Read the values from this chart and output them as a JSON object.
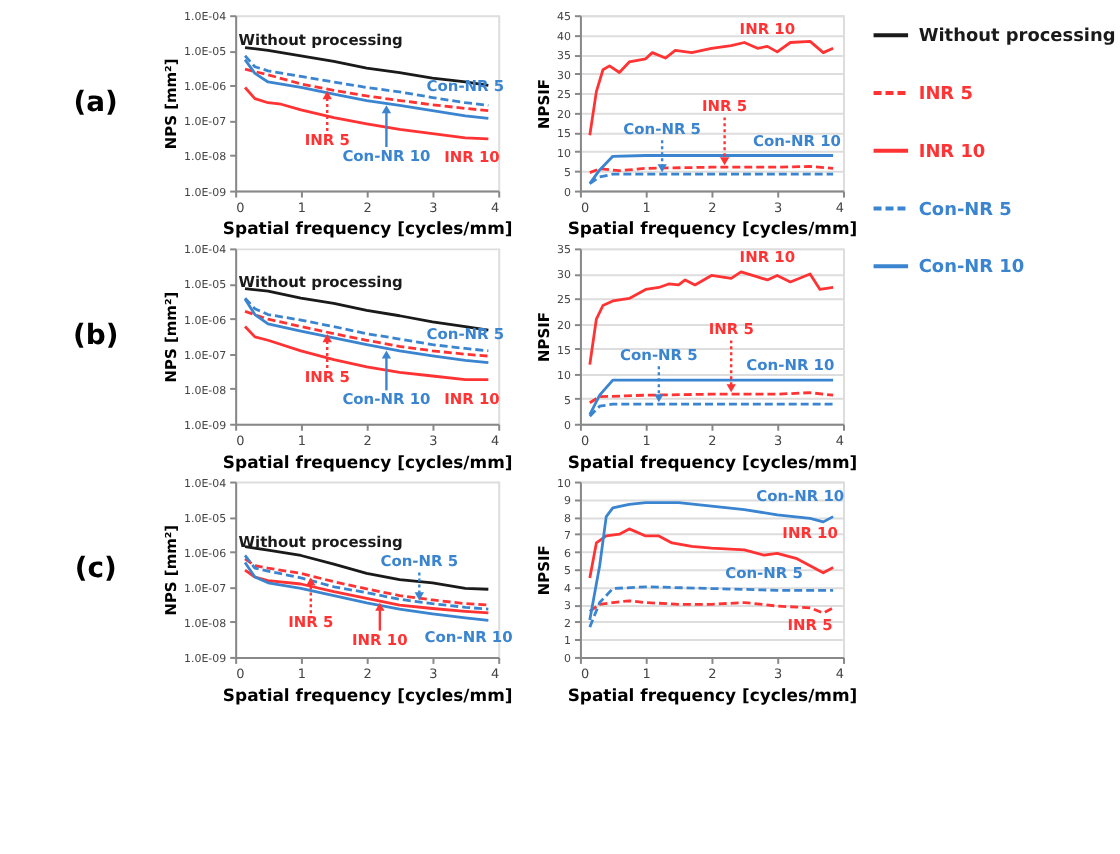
{
  "chart_data": [
    {
      "type": "line",
      "xlabel": "Spatial frequency [cycles/mm]",
      "ylabel": "NPS [mm²]",
      "log": "y",
      "legend": "right",
      "xlim": [
        0,
        4
      ],
      "xticks": [
        0,
        1,
        2,
        3,
        4
      ],
      "ylim": [
        1e-09,
        0.0001
      ],
      "yticks": [
        {
          "value": 1e-09,
          "label": "1.0E-09"
        },
        {
          "value": 1e-08,
          "label": "1.0E-08"
        },
        {
          "value": 1e-07,
          "label": "1.0E-07"
        },
        {
          "value": 1e-06,
          "label": "1.0E-06"
        },
        {
          "value": 1e-05,
          "label": "1.0E-05"
        },
        {
          "value": 0.0001,
          "label": "1.0E-04"
        }
      ],
      "series": [
        {
          "name": "Without processing",
          "color": "#1a1a1a",
          "line_style": "solid",
          "x": [
            0.15,
            0.5,
            1.0,
            1.5,
            2.0,
            2.5,
            3.0,
            3.5,
            3.85
          ],
          "values": [
            1.2e-05,
            1e-05,
            6.9e-06,
            4.8e-06,
            3.1e-06,
            2.3e-06,
            1.6e-06,
            1.25e-06,
            1e-06
          ]
        },
        {
          "name": "INR 5",
          "color": "#ff3333",
          "line_style": "dashed",
          "x": [
            0.15,
            0.5,
            1.0,
            1.5,
            2.0,
            2.5,
            3.0,
            3.5,
            3.85
          ],
          "values": [
            2.9e-06,
            2e-06,
            1.1e-06,
            7.2e-07,
            5e-07,
            3.7e-07,
            2.8e-07,
            2.2e-07,
            1.9e-07
          ]
        },
        {
          "name": "INR 10",
          "color": "#ff3333",
          "line_style": "solid",
          "x": [
            0.15,
            0.3,
            0.5,
            0.7,
            1.0,
            1.5,
            2.0,
            2.5,
            3.0,
            3.5,
            3.85
          ],
          "values": [
            8.7e-07,
            4.2e-07,
            3.2e-07,
            2.9e-07,
            2e-07,
            1.2e-07,
            8e-08,
            5.6e-08,
            4.2e-08,
            3.2e-08,
            3e-08
          ]
        },
        {
          "name": "Con-NR 5",
          "color": "#3a84d0",
          "line_style": "dashed",
          "x": [
            0.15,
            0.3,
            0.5,
            1.0,
            1.5,
            2.0,
            2.5,
            3.0,
            3.5,
            3.85
          ],
          "values": [
            7e-06,
            3.4e-06,
            2.6e-06,
            1.8e-06,
            1.25e-06,
            8.7e-07,
            6.5e-07,
            4.5e-07,
            3.2e-07,
            2.7e-07
          ]
        },
        {
          "name": "Con-NR 10",
          "color": "#3a84d0",
          "line_style": "solid",
          "x": [
            0.15,
            0.3,
            0.5,
            1.0,
            1.5,
            2.0,
            2.5,
            3.0,
            3.5,
            3.85
          ],
          "values": [
            5.4e-06,
            2.2e-06,
            1.25e-06,
            8.7e-07,
            5.6e-07,
            3.7e-07,
            2.7e-07,
            1.9e-07,
            1.35e-07,
            1.15e-07
          ]
        }
      ],
      "annotations": [
        "(a)",
        {
          "text": "Without processing",
          "x": 1.3,
          "y": 5.6e-06
        },
        {
          "text": "Con-NR 5",
          "x": 3.5,
          "y": 3.2e-07
        },
        {
          "text": "INR 5",
          "x": 1.4,
          "y": 7.8e-07
        },
        {
          "text": "Con-NR 10",
          "x": 2.3,
          "y": 3.1e-07
        },
        {
          "text": "INR 10",
          "x": 3.6,
          "y": 3.1e-08
        }
      ]
    },
    {
      "type": "line",
      "xlabel": "Spatial frequency [cycles/mm]",
      "ylabel": "NPSIF",
      "grid": "y",
      "xlim": [
        0,
        4
      ],
      "xticks": [
        0,
        1,
        2,
        3,
        4
      ],
      "ylim": [
        0,
        45
      ],
      "yticks": [
        0,
        5,
        10,
        15,
        20,
        25,
        30,
        35,
        40,
        45
      ],
      "series": [
        {
          "color": "#ff3333",
          "line_style": "dashed",
          "x": [
            0.15,
            0.3,
            0.6,
            1.0,
            2.0,
            3.0,
            3.5,
            3.85
          ],
          "values": [
            4.6,
            5.6,
            5.1,
            5.7,
            6.0,
            6.0,
            6.2,
            5.7
          ]
        },
        {
          "color": "#ff3333",
          "line_style": "solid",
          "x": [
            0.15,
            0.25,
            0.35,
            0.45,
            0.6,
            0.75,
            1.0,
            1.1,
            1.3,
            1.45,
            1.7,
            2.0,
            2.3,
            2.5,
            2.7,
            2.85,
            3.0,
            3.2,
            3.5,
            3.7,
            3.85
          ],
          "values": [
            14.2,
            25.4,
            31,
            32,
            30.3,
            33,
            33.8,
            35.4,
            34,
            36,
            35.4,
            36.5,
            37.2,
            38,
            36.5,
            37,
            35.6,
            38,
            38.3,
            35.4,
            36.5
          ]
        },
        {
          "color": "#3a84d0",
          "line_style": "dashed",
          "x": [
            0.15,
            0.3,
            0.5,
            1.0,
            3.85
          ],
          "values": [
            1.8,
            3.5,
            4.2,
            4.2,
            4.2
          ]
        },
        {
          "color": "#3a84d0",
          "line_style": "solid",
          "x": [
            0.15,
            0.3,
            0.5,
            1.0,
            3.85
          ],
          "values": [
            1.8,
            5.3,
            8.8,
            9.0,
            9.0
          ]
        }
      ],
      "annotations": [
        {
          "text": "INR 10",
          "x": 2.85,
          "y": 37
        },
        {
          "text": "INR 5",
          "x": 2.2,
          "y": 6.0
        },
        {
          "text": "Con-NR 5",
          "x": 1.25,
          "y": 4.2
        },
        {
          "text": "Con-NR 10",
          "x": 3.3,
          "y": 9.0
        }
      ]
    },
    {
      "type": "line",
      "xlabel": "Spatial frequency [cycles/mm]",
      "ylabel": "NPS [mm²]",
      "log": "y",
      "xlim": [
        0,
        4
      ],
      "xticks": [
        0,
        1,
        2,
        3,
        4
      ],
      "ylim": [
        1e-09,
        0.0001
      ],
      "yticks": [
        {
          "value": 1e-09,
          "label": "1.0E-09"
        },
        {
          "value": 1e-08,
          "label": "1.0E-08"
        },
        {
          "value": 1e-07,
          "label": "1.0E-07"
        },
        {
          "value": 1e-06,
          "label": "1.0E-06"
        },
        {
          "value": 1e-05,
          "label": "1.0E-05"
        },
        {
          "value": 0.0001,
          "label": "1.0E-04"
        }
      ],
      "series": [
        {
          "color": "#1a1a1a",
          "line_style": "solid",
          "x": [
            0.15,
            0.5,
            1.0,
            1.5,
            2.0,
            2.5,
            3.0,
            3.5,
            3.85
          ],
          "values": [
            7.1e-06,
            6e-06,
            3.8e-06,
            2.7e-06,
            1.7e-06,
            1.2e-06,
            8e-07,
            5.9e-07,
            4.7e-07
          ]
        },
        {
          "color": "#ff3333",
          "line_style": "dashed",
          "x": [
            0.15,
            0.5,
            1.0,
            1.5,
            2.0,
            2.5,
            3.0,
            3.5,
            3.85
          ],
          "values": [
            1.6e-06,
            9.6e-07,
            5.9e-07,
            3.7e-07,
            2.4e-07,
            1.6e-07,
            1.2e-07,
            9.6e-08,
            8.5e-08
          ]
        },
        {
          "color": "#ff3333",
          "line_style": "solid",
          "x": [
            0.15,
            0.3,
            0.5,
            1.0,
            1.5,
            2.0,
            2.5,
            3.0,
            3.5,
            3.85
          ],
          "values": [
            5.9e-07,
            3e-07,
            2.4e-07,
            1.2e-07,
            6.7e-08,
            4.2e-08,
            2.9e-08,
            2.3e-08,
            1.8e-08,
            1.8e-08
          ]
        },
        {
          "color": "#3a84d0",
          "line_style": "dashed",
          "x": [
            0.15,
            0.3,
            0.5,
            1.0,
            1.5,
            2.0,
            2.5,
            3.0,
            3.5,
            3.85
          ],
          "values": [
            3.8e-06,
            1.9e-06,
            1.3e-06,
            9e-07,
            5.9e-07,
            3.7e-07,
            2.6e-07,
            1.8e-07,
            1.4e-07,
            1.2e-07
          ]
        },
        {
          "color": "#3a84d0",
          "line_style": "solid",
          "x": [
            0.15,
            0.3,
            0.5,
            1.0,
            1.5,
            2.0,
            2.5,
            3.0,
            3.5,
            3.85
          ],
          "values": [
            3.6e-06,
            1.3e-06,
            7e-07,
            4.4e-07,
            2.8e-07,
            1.8e-07,
            1.2e-07,
            8.6e-08,
            6.4e-08,
            5.5e-08
          ]
        }
      ],
      "annotations": [
        "(b)",
        {
          "text": "Without processing",
          "x": 1.3,
          "y": 3.1e-06
        },
        {
          "text": "Con-NR 5",
          "x": 3.5,
          "y": 1.4e-07
        },
        {
          "text": "INR 5",
          "x": 1.4,
          "y": 4.1e-07
        },
        {
          "text": "Con-NR 10",
          "x": 2.3,
          "y": 1.4e-07
        },
        {
          "text": "INR 10",
          "x": 3.6,
          "y": 1.8e-08
        }
      ]
    },
    {
      "type": "line",
      "xlabel": "Spatial frequency [cycles/mm]",
      "ylabel": "NPSIF",
      "grid": "y",
      "xlim": [
        0,
        4
      ],
      "xticks": [
        0,
        1,
        2,
        3,
        4
      ],
      "ylim": [
        0,
        35
      ],
      "yticks": [
        0,
        5,
        10,
        15,
        20,
        25,
        30,
        35
      ],
      "series": [
        {
          "color": "#ff3333",
          "line_style": "dashed",
          "x": [
            0.15,
            0.3,
            1.0,
            2.0,
            3.0,
            3.5,
            3.85
          ],
          "values": [
            4.2,
            5.4,
            5.7,
            5.9,
            5.9,
            6.2,
            5.7
          ]
        },
        {
          "color": "#ff3333",
          "line_style": "solid",
          "x": [
            0.15,
            0.25,
            0.35,
            0.5,
            0.75,
            1.0,
            1.2,
            1.35,
            1.5,
            1.6,
            1.75,
            2.0,
            2.3,
            2.45,
            2.7,
            2.85,
            3.0,
            3.2,
            3.5,
            3.65,
            3.85
          ],
          "values": [
            11.8,
            20.9,
            23.6,
            24.5,
            25,
            26.8,
            27.2,
            27.9,
            27.7,
            28.7,
            27.7,
            29.6,
            29,
            30.3,
            29.3,
            28.7,
            29.6,
            28.3,
            29.9,
            26.8,
            27.2
          ]
        },
        {
          "color": "#3a84d0",
          "line_style": "dashed",
          "x": [
            0.15,
            0.3,
            0.5,
            3.85
          ],
          "values": [
            1.5,
            3.5,
            3.9,
            3.9
          ]
        },
        {
          "color": "#3a84d0",
          "line_style": "solid",
          "x": [
            0.15,
            0.3,
            0.5,
            3.85
          ],
          "values": [
            1.8,
            5.7,
            8.7,
            8.7
          ]
        }
      ],
      "annotations": [
        {
          "text": "INR 10",
          "x": 2.85,
          "y": 28.7
        },
        {
          "text": "INR 5",
          "x": 2.3,
          "y": 5.9
        },
        {
          "text": "Con-NR 5",
          "x": 1.2,
          "y": 3.9
        },
        {
          "text": "Con-NR 10",
          "x": 3.2,
          "y": 8.7
        }
      ]
    },
    {
      "type": "line",
      "xlabel": "Spatial frequency [cycles/mm]",
      "ylabel": "NPS [mm²]",
      "log": "y",
      "xlim": [
        0,
        4
      ],
      "xticks": [
        0,
        1,
        2,
        3,
        4
      ],
      "ylim": [
        1e-09,
        0.0001
      ],
      "yticks": [
        {
          "value": 1e-09,
          "label": "1.0E-09"
        },
        {
          "value": 1e-08,
          "label": "1.0E-08"
        },
        {
          "value": 1e-07,
          "label": "1.0E-07"
        },
        {
          "value": 1e-06,
          "label": "1.0E-06"
        },
        {
          "value": 1e-05,
          "label": "1.0E-05"
        },
        {
          "value": 0.0001,
          "label": "1.0E-04"
        }
      ],
      "series": [
        {
          "color": "#1a1a1a",
          "line_style": "solid",
          "x": [
            0.15,
            0.5,
            1.0,
            1.5,
            2.0,
            2.5,
            3.0,
            3.5,
            3.85
          ],
          "values": [
            1.4e-06,
            1.1e-06,
            7.8e-07,
            4.4e-07,
            2.4e-07,
            1.6e-07,
            1.3e-07,
            9e-08,
            8.5e-08
          ]
        },
        {
          "color": "#ff3333",
          "line_style": "dashed",
          "x": [
            0.15,
            0.3,
            0.5,
            1.0,
            1.5,
            2.0,
            2.5,
            3.0,
            3.5,
            3.85
          ],
          "values": [
            6.3e-07,
            4e-07,
            3.4e-07,
            2.4e-07,
            1.4e-07,
            8.7e-08,
            5.6e-08,
            4.2e-08,
            3.3e-08,
            3e-08
          ]
        },
        {
          "color": "#ff3333",
          "line_style": "solid",
          "x": [
            0.15,
            0.3,
            0.5,
            1.0,
            1.5,
            2.0,
            2.5,
            3.0,
            3.5,
            3.85
          ],
          "values": [
            3e-07,
            1.9e-07,
            1.5e-07,
            1.2e-07,
            7.3e-08,
            4.7e-08,
            3e-08,
            2.4e-08,
            2e-08,
            1.8e-08
          ]
        },
        {
          "color": "#3a84d0",
          "line_style": "dashed",
          "x": [
            0.15,
            0.3,
            0.5,
            1.0,
            1.5,
            2.0,
            2.5,
            3.0,
            3.5,
            3.85
          ],
          "values": [
            7.8e-07,
            3.4e-07,
            2.8e-07,
            1.8e-07,
            1e-07,
            6.8e-08,
            4.4e-08,
            3.3e-08,
            2.6e-08,
            2.3e-08
          ]
        },
        {
          "color": "#3a84d0",
          "line_style": "solid",
          "x": [
            0.15,
            0.3,
            0.5,
            1.0,
            1.5,
            2.0,
            2.5,
            3.0,
            3.5,
            3.85
          ],
          "values": [
            4.9e-07,
            1.9e-07,
            1.3e-07,
            9e-08,
            5.6e-08,
            3.5e-08,
            2.3e-08,
            1.7e-08,
            1.3e-08,
            1.1e-08
          ]
        }
      ],
      "annotations": [
        "(c)",
        {
          "text": "Without processing",
          "x": 1.3,
          "y": 5.6e-07
        },
        {
          "text": "Con-NR 5",
          "x": 2.8,
          "y": 3.6e-08
        },
        {
          "text": "INR 5",
          "x": 1.15,
          "y": 2.1e-07
        },
        {
          "text": "INR 10",
          "x": 2.2,
          "y": 4e-08
        },
        {
          "text": "Con-NR 10",
          "x": 3.55,
          "y": 1.25e-08
        }
      ]
    },
    {
      "type": "line",
      "xlabel": "Spatial frequency [cycles/mm]",
      "ylabel": "NPSIF",
      "grid": "y",
      "xlim": [
        0,
        4
      ],
      "xticks": [
        0,
        1,
        2,
        3,
        4
      ],
      "ylim": [
        0,
        10
      ],
      "yticks": [
        0,
        1,
        2,
        3,
        4,
        5,
        6,
        7,
        8,
        9,
        10
      ],
      "series": [
        {
          "color": "#ff3333",
          "line_style": "dashed",
          "x": [
            0.15,
            0.3,
            0.5,
            0.75,
            1.0,
            1.5,
            2.0,
            2.5,
            3.0,
            3.5,
            3.7,
            3.85
          ],
          "values": [
            2.6,
            3.0,
            3.1,
            3.2,
            3.1,
            3.0,
            3.0,
            3.1,
            2.9,
            2.8,
            2.5,
            2.8
          ]
        },
        {
          "color": "#ff3333",
          "line_style": "solid",
          "x": [
            0.15,
            0.25,
            0.4,
            0.6,
            0.75,
            1.0,
            1.2,
            1.4,
            1.7,
            2.0,
            2.5,
            2.8,
            3.0,
            3.3,
            3.5,
            3.7,
            3.85
          ],
          "values": [
            4.5,
            6.5,
            6.9,
            7.0,
            7.3,
            6.9,
            6.9,
            6.5,
            6.3,
            6.2,
            6.1,
            5.8,
            5.9,
            5.6,
            5.2,
            4.8,
            5.1
          ]
        },
        {
          "color": "#3a84d0",
          "line_style": "dashed",
          "x": [
            0.15,
            0.3,
            0.5,
            1.0,
            2.0,
            3.0,
            3.85
          ],
          "values": [
            1.7,
            3.1,
            3.9,
            4.0,
            3.9,
            3.8,
            3.8
          ]
        },
        {
          "color": "#3a84d0",
          "line_style": "solid",
          "x": [
            0.15,
            0.3,
            0.4,
            0.5,
            0.75,
            1.0,
            1.5,
            2.0,
            2.5,
            3.0,
            3.5,
            3.7,
            3.85
          ],
          "values": [
            2.1,
            5.2,
            8.0,
            8.5,
            8.7,
            8.8,
            8.8,
            8.6,
            8.4,
            8.1,
            7.9,
            7.7,
            8.0
          ]
        }
      ],
      "annotations": [
        {
          "text": "Con-NR 10",
          "x": 3.35,
          "y": 8.0
        },
        {
          "text": "INR 10",
          "x": 3.5,
          "y": 5.2
        },
        {
          "text": "Con-NR 5",
          "x": 2.8,
          "y": 3.8
        },
        {
          "text": "INR 5",
          "x": 3.5,
          "y": 2.8
        }
      ]
    }
  ]
}
